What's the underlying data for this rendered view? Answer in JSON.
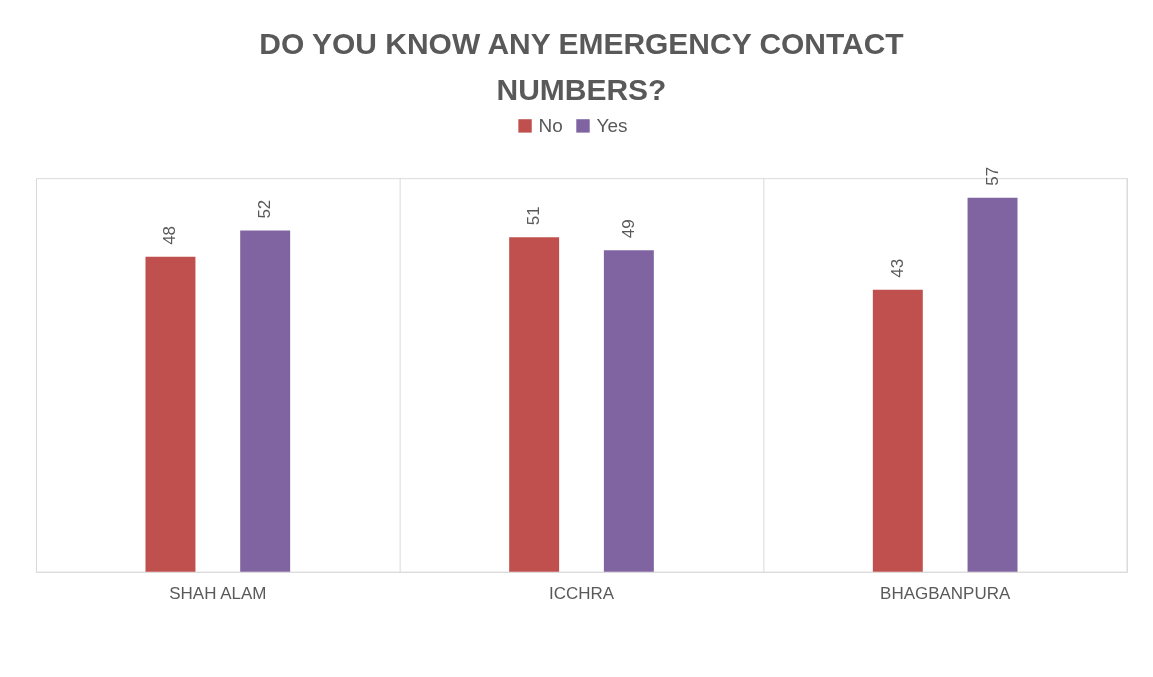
{
  "chart_data": {
    "type": "bar",
    "title": "DO YOU KNOW ANY EMERGENCY CONTACT NUMBERS?",
    "categories": [
      "SHAH ALAM",
      "ICCHRA",
      "BHAGBANPURA"
    ],
    "series": [
      {
        "name": "No",
        "color": "#c0504d",
        "values": [
          48,
          51,
          43
        ]
      },
      {
        "name": "Yes",
        "color": "#8064a2",
        "values": [
          52,
          49,
          57
        ]
      }
    ],
    "ylim": [
      0,
      60
    ],
    "data_labels": true,
    "legend": "top",
    "grid": "x"
  }
}
